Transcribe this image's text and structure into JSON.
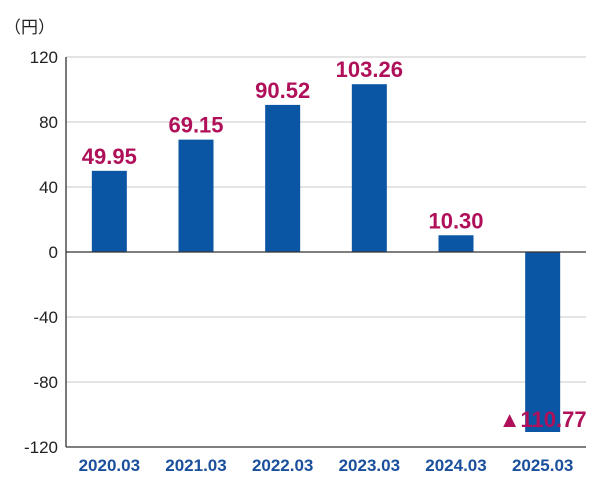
{
  "chart_data": {
    "type": "bar",
    "unit_label": "（円）",
    "categories": [
      "2020.03",
      "2021.03",
      "2022.03",
      "2023.03",
      "2024.03",
      "2025.03"
    ],
    "values": [
      49.95,
      69.15,
      90.52,
      103.26,
      10.3,
      -110.77
    ],
    "data_labels": [
      "49.95",
      "69.15",
      "90.52",
      "103.26",
      "10.30",
      "▲110.77"
    ],
    "yticks": [
      "120",
      "80",
      "40",
      "0",
      "-40",
      "-80",
      "-120"
    ],
    "ylim": [
      -120,
      120
    ],
    "grid": true,
    "bar_color": "#0b56a4",
    "label_color": "#b0105a",
    "grid_color": "#c8c8c8"
  }
}
